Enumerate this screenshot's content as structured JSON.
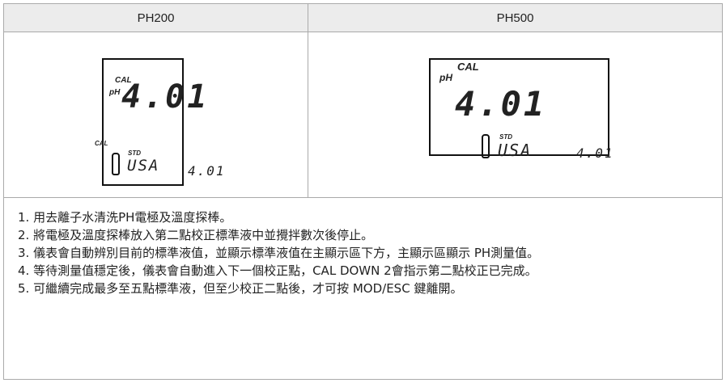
{
  "table": {
    "headers": [
      "PH200",
      "PH500"
    ],
    "displays": [
      {
        "cal_top": "CAL",
        "unit": "pH",
        "reading": "4.01",
        "cal_bottom": "CAL",
        "std": "STD",
        "standard": "USA",
        "side_reading": "4.01"
      },
      {
        "cal_top": "CAL",
        "unit": "pH",
        "reading": "4.01",
        "std": "STD",
        "standard": "USA",
        "side_reading": "4.01"
      }
    ],
    "steps": [
      "1. 用去離子水清洗PH電極及溫度探棒。",
      "2. 將電極及溫度探棒放入第二點校正標準液中並攪拌數次後停止。",
      "3. 儀表會自動辨別目前的標準液值，並顯示標準液值在主顯示區下方，主顯示區顯示 PH測量值。",
      "4. 等待測量值穩定後，儀表會自動進入下一個校正點，CAL DOWN 2會指示第二點校正已完成。",
      "5. 可繼續完成最多至五點標準液，但至少校正二點後，才可按 MOD/ESC 鍵離開。"
    ]
  }
}
